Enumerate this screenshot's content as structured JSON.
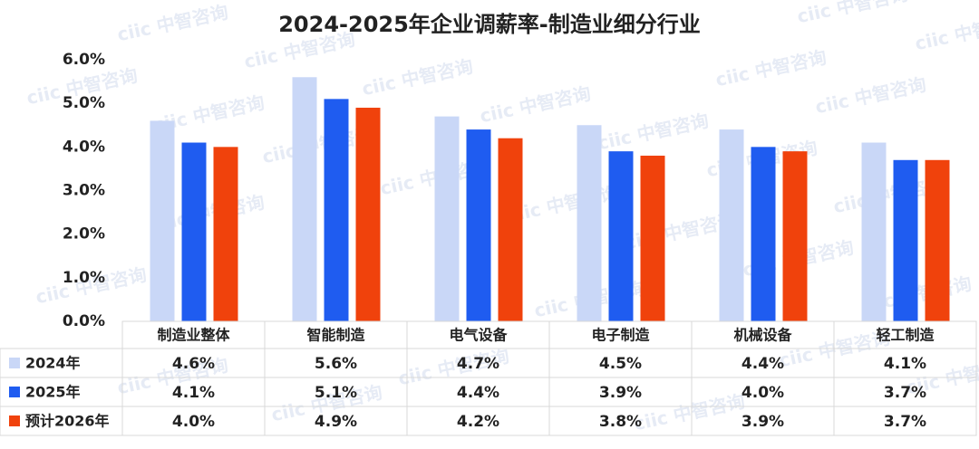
{
  "chart_data": {
    "type": "bar",
    "title": "2024-2025年企业调薪率-制造业细分行业",
    "watermark": "ciic 中智咨询",
    "categories": [
      "制造业整体",
      "智能制造",
      "电气设备",
      "电子制造",
      "机械设备",
      "轻工制造"
    ],
    "series": [
      {
        "name": "2024年",
        "color": "#c9d7f7",
        "values": [
          4.6,
          5.6,
          4.7,
          4.5,
          4.4,
          4.1
        ],
        "value_labels": [
          "4.6%",
          "5.6%",
          "4.7%",
          "4.5%",
          "4.4%",
          "4.1%"
        ]
      },
      {
        "name": "2025年",
        "color": "#1f5cf0",
        "values": [
          4.1,
          5.1,
          4.4,
          3.9,
          4.0,
          3.7
        ],
        "value_labels": [
          "4.1%",
          "5.1%",
          "4.4%",
          "3.9%",
          "4.0%",
          "3.7%"
        ]
      },
      {
        "name": "预计2026年",
        "color": "#f0420c",
        "values": [
          4.0,
          4.9,
          4.2,
          3.8,
          3.9,
          3.7
        ],
        "value_labels": [
          "4.0%",
          "4.9%",
          "4.2%",
          "3.8%",
          "3.9%",
          "3.7%"
        ]
      }
    ],
    "ylim": [
      0,
      6
    ],
    "yticks": [
      {
        "value": 0,
        "label": "0.0%"
      },
      {
        "value": 1,
        "label": "1.0%"
      },
      {
        "value": 2,
        "label": "2.0%"
      },
      {
        "value": 3,
        "label": "3.0%"
      },
      {
        "value": 4,
        "label": "4.0%"
      },
      {
        "value": 5,
        "label": "5.0%"
      },
      {
        "value": 6,
        "label": "6.0%"
      }
    ],
    "grid": false
  }
}
